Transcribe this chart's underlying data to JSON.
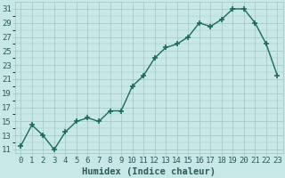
{
  "x": [
    0,
    1,
    2,
    3,
    4,
    5,
    6,
    7,
    8,
    9,
    10,
    11,
    12,
    13,
    14,
    15,
    16,
    17,
    18,
    19,
    20,
    21,
    22,
    23
  ],
  "y": [
    11.5,
    14.5,
    13,
    11,
    13.5,
    15,
    15.5,
    15,
    16.5,
    16.5,
    20,
    21.5,
    24,
    25.5,
    26,
    27,
    29,
    28.5,
    29.5,
    31,
    31,
    29,
    26,
    21.5
  ],
  "line_color": "#1a6b5a",
  "marker_color": "#1a6b5a",
  "bg_color": "#c8e8e8",
  "grid_color": "#a0c4c4",
  "xlabel": "Humidex (Indice chaleur)",
  "xlim": [
    -0.5,
    23.5
  ],
  "ylim": [
    10.5,
    32
  ],
  "yticks": [
    11,
    13,
    15,
    17,
    19,
    21,
    23,
    25,
    27,
    29,
    31
  ],
  "xticks": [
    0,
    1,
    2,
    3,
    4,
    5,
    6,
    7,
    8,
    9,
    10,
    11,
    12,
    13,
    14,
    15,
    16,
    17,
    18,
    19,
    20,
    21,
    22,
    23
  ],
  "xlabel_fontsize": 7.5,
  "tick_fontsize": 6.5,
  "linewidth": 1.0,
  "markersize": 4,
  "font_color": "#2a5a5a"
}
